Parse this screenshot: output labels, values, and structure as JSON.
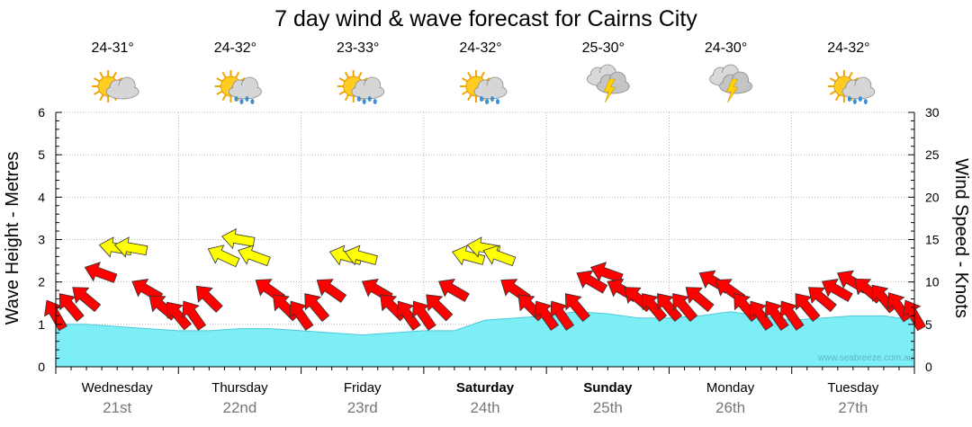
{
  "chart_data": {
    "type": "area",
    "title": "7 day wind & wave forecast for Cairns City",
    "ylabel": "Wave Height - Metres",
    "y2label": "Wind Speed - Knots",
    "ylim": [
      0,
      6
    ],
    "y2lim": [
      0,
      30
    ],
    "yticks": [
      "0",
      "1",
      "2",
      "3",
      "4",
      "5",
      "6"
    ],
    "y2ticks": [
      "0",
      "5",
      "10",
      "15",
      "20",
      "25",
      "30"
    ],
    "grid": true,
    "watermark": "www.seabreeze.com.au",
    "days": [
      {
        "name": "Wednesday",
        "date": "21st",
        "bold": false,
        "temp": "24-31°",
        "icon": "partly-cloudy-icon"
      },
      {
        "name": "Thursday",
        "date": "22nd",
        "bold": false,
        "temp": "24-32°",
        "icon": "sun-cloud-rain-icon"
      },
      {
        "name": "Friday",
        "date": "23rd",
        "bold": false,
        "temp": "23-33°",
        "icon": "sun-cloud-rain-icon"
      },
      {
        "name": "Saturday",
        "date": "24th",
        "bold": true,
        "temp": "24-32°",
        "icon": "sun-cloud-rain-icon"
      },
      {
        "name": "Sunday",
        "date": "25th",
        "bold": true,
        "temp": "25-30°",
        "icon": "thunderstorm-icon"
      },
      {
        "name": "Monday",
        "date": "26th",
        "bold": false,
        "temp": "24-30°",
        "icon": "thunderstorm-icon"
      },
      {
        "name": "Tuesday",
        "date": "27th",
        "bold": false,
        "temp": "24-32°",
        "icon": "sun-cloud-rain-icon"
      }
    ],
    "wave_series": {
      "name": "Wave Height",
      "x": [
        0,
        0.25,
        0.5,
        0.75,
        1,
        1.25,
        1.5,
        1.75,
        2,
        2.25,
        2.5,
        2.75,
        3,
        3.25,
        3.5,
        3.75,
        4,
        4.25,
        4.5,
        4.75,
        5,
        5.25,
        5.5,
        5.75,
        6,
        6.25,
        6.5,
        6.75,
        7
      ],
      "values": [
        1.0,
        1.0,
        0.95,
        0.9,
        0.85,
        0.85,
        0.9,
        0.9,
        0.85,
        0.8,
        0.75,
        0.8,
        0.85,
        0.85,
        1.1,
        1.15,
        1.2,
        1.3,
        1.25,
        1.15,
        1.15,
        1.2,
        1.3,
        1.2,
        1.1,
        1.15,
        1.2,
        1.2,
        1.1
      ]
    },
    "wind_series": {
      "name": "Wind Speed",
      "x": [
        0,
        0.125,
        0.25,
        0.375,
        0.5,
        0.625,
        0.75,
        0.875,
        1,
        1.125,
        1.25,
        1.375,
        1.5,
        1.625,
        1.75,
        1.875,
        2,
        2.125,
        2.25,
        2.375,
        2.5,
        2.625,
        2.75,
        2.875,
        3,
        3.125,
        3.25,
        3.375,
        3.5,
        3.625,
        3.75,
        3.875,
        4,
        4.125,
        4.25,
        4.375,
        4.5,
        4.625,
        4.75,
        4.875,
        5,
        5.125,
        5.25,
        5.375,
        5.5,
        5.625,
        5.75,
        5.875,
        6,
        6.125,
        6.25,
        6.375,
        6.5,
        6.625,
        6.75,
        6.875,
        7
      ],
      "values": [
        6,
        7,
        8,
        11,
        14,
        14,
        9,
        7,
        6,
        6,
        8,
        13,
        15,
        13,
        9,
        7,
        6,
        7,
        9,
        13,
        13,
        9,
        7,
        6,
        6,
        7,
        9,
        13,
        14,
        13,
        9,
        7,
        6,
        6,
        7,
        10,
        11,
        9,
        8,
        7,
        7,
        7,
        8,
        10,
        9,
        7,
        6,
        6,
        6,
        7,
        8,
        9,
        10,
        9,
        8,
        7,
        6
      ],
      "directions": [
        120,
        130,
        140,
        160,
        170,
        170,
        150,
        140,
        130,
        125,
        135,
        155,
        170,
        160,
        145,
        135,
        125,
        130,
        145,
        165,
        165,
        150,
        135,
        125,
        125,
        135,
        150,
        165,
        170,
        160,
        145,
        135,
        125,
        125,
        130,
        150,
        160,
        150,
        140,
        130,
        130,
        130,
        140,
        150,
        145,
        130,
        125,
        125,
        125,
        130,
        140,
        150,
        150,
        140,
        130,
        125,
        120
      ]
    },
    "colors": {
      "wave_fill": "#7deef5",
      "wave_line": "#4dc9d9",
      "arrow_strong": "#ffff00",
      "arrow_normal": "#ff0000",
      "title": "#000000",
      "date": "#777777"
    }
  }
}
